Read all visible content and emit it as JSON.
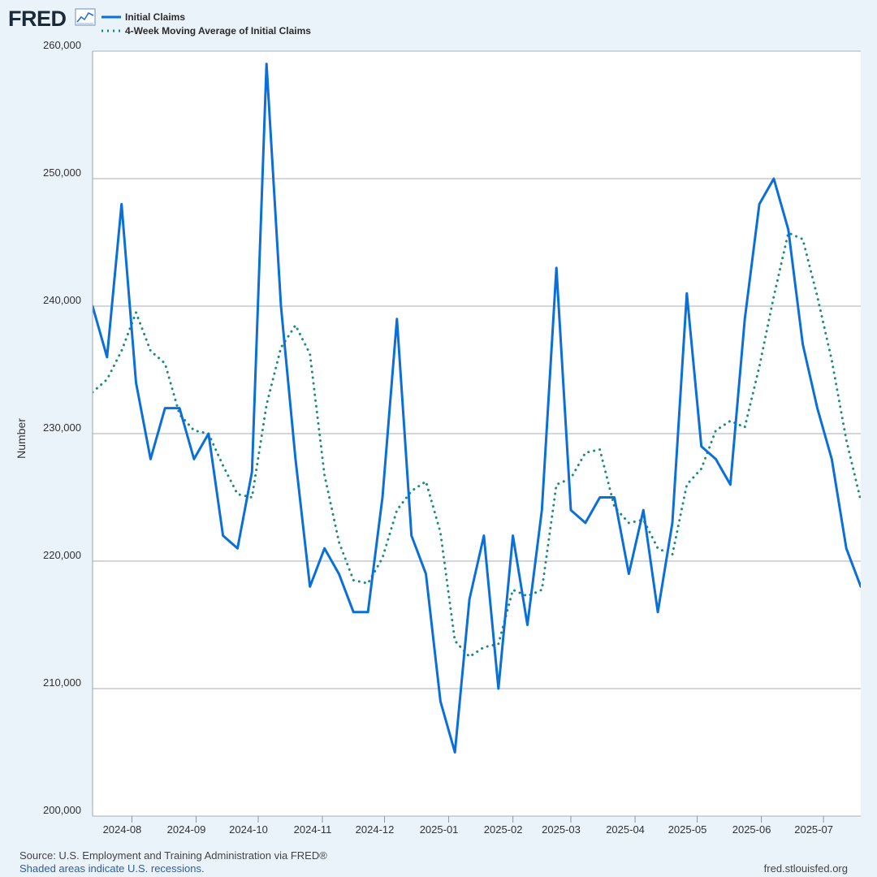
{
  "header": {
    "logo_text": "FRED",
    "logo_icon": "line-chart-icon"
  },
  "legend": [
    {
      "label": "Initial Claims",
      "color": "#0a6fd9",
      "style": "solid"
    },
    {
      "label": "4-Week Moving Average of Initial Claims",
      "color": "#1a8a7a",
      "style": "dotted"
    }
  ],
  "chart_data": {
    "type": "line",
    "title": "",
    "xlabel": "",
    "ylabel": "Number",
    "ylim": [
      200000,
      260000
    ],
    "yticks": [
      200000,
      210000,
      220000,
      230000,
      240000,
      250000,
      260000
    ],
    "ytick_labels": [
      "200,000",
      "210,000",
      "220,000",
      "230,000",
      "240,000",
      "250,000",
      "260,000"
    ],
    "xlim": [
      "2024-07-13",
      "2025-07-19"
    ],
    "xticks": [
      "2024-08-01",
      "2024-09-01",
      "2024-10-01",
      "2024-11-01",
      "2024-12-01",
      "2025-01-01",
      "2025-02-01",
      "2025-03-01",
      "2025-04-01",
      "2025-05-01",
      "2025-06-01",
      "2025-07-01"
    ],
    "xtick_labels": [
      "2024-08",
      "2024-09",
      "2024-10",
      "2024-11",
      "2024-12",
      "2025-01",
      "2025-02",
      "2025-03",
      "2025-04",
      "2025-05",
      "2025-06",
      "2025-07"
    ],
    "grid": "horizontal",
    "legend_position": "top-left",
    "x": [
      "2024-07-13",
      "2024-07-20",
      "2024-07-27",
      "2024-08-03",
      "2024-08-10",
      "2024-08-17",
      "2024-08-24",
      "2024-08-31",
      "2024-09-07",
      "2024-09-14",
      "2024-09-21",
      "2024-09-28",
      "2024-10-05",
      "2024-10-12",
      "2024-10-19",
      "2024-10-26",
      "2024-11-02",
      "2024-11-09",
      "2024-11-16",
      "2024-11-23",
      "2024-11-30",
      "2024-12-07",
      "2024-12-14",
      "2024-12-21",
      "2024-12-28",
      "2025-01-04",
      "2025-01-11",
      "2025-01-18",
      "2025-01-25",
      "2025-02-01",
      "2025-02-08",
      "2025-02-15",
      "2025-02-22",
      "2025-03-01",
      "2025-03-08",
      "2025-03-15",
      "2025-03-22",
      "2025-03-29",
      "2025-04-05",
      "2025-04-12",
      "2025-04-19",
      "2025-04-26",
      "2025-05-03",
      "2025-05-10",
      "2025-05-17",
      "2025-05-24",
      "2025-05-31",
      "2025-06-07",
      "2025-06-14",
      "2025-06-21",
      "2025-06-28",
      "2025-07-05",
      "2025-07-12",
      "2025-07-19"
    ],
    "series": [
      {
        "name": "Initial Claims",
        "color": "#0a6fd9",
        "style": "solid",
        "values": [
          240000,
          236000,
          248000,
          234000,
          228000,
          232000,
          232000,
          228000,
          230000,
          222000,
          221000,
          227000,
          259000,
          240000,
          228000,
          218000,
          221000,
          219000,
          216000,
          216000,
          225000,
          239000,
          222000,
          219000,
          209000,
          205000,
          217000,
          222000,
          210000,
          222000,
          215000,
          224000,
          243000,
          224000,
          223000,
          225000,
          225000,
          219000,
          224000,
          216000,
          223000,
          241000,
          229000,
          228000,
          226000,
          239000,
          248000,
          250000,
          246000,
          237000,
          232000,
          228000,
          221000,
          218000
        ]
      },
      {
        "name": "4-Week Moving Average of Initial Claims",
        "color": "#1a8a7a",
        "style": "dotted",
        "values": [
          233250,
          234250,
          236500,
          239500,
          236500,
          235500,
          231500,
          230250,
          230000,
          227500,
          225250,
          225000,
          232250,
          236750,
          238500,
          236250,
          226750,
          221500,
          218500,
          218250,
          220250,
          224000,
          225500,
          226250,
          222250,
          213750,
          212500,
          213250,
          213500,
          217750,
          217250,
          217750,
          226000,
          226500,
          228500,
          228750,
          224250,
          223000,
          223250,
          221000,
          220500,
          226000,
          227250,
          230250,
          231000,
          230500,
          235250,
          240750,
          245750,
          245250,
          240750,
          235750,
          229500,
          224750
        ]
      }
    ]
  },
  "footer": {
    "source": "Source: U.S. Employment and Training Administration via FRED®",
    "note": "Shaded areas indicate U.S. recessions.",
    "site": "fred.stlouisfed.org"
  }
}
